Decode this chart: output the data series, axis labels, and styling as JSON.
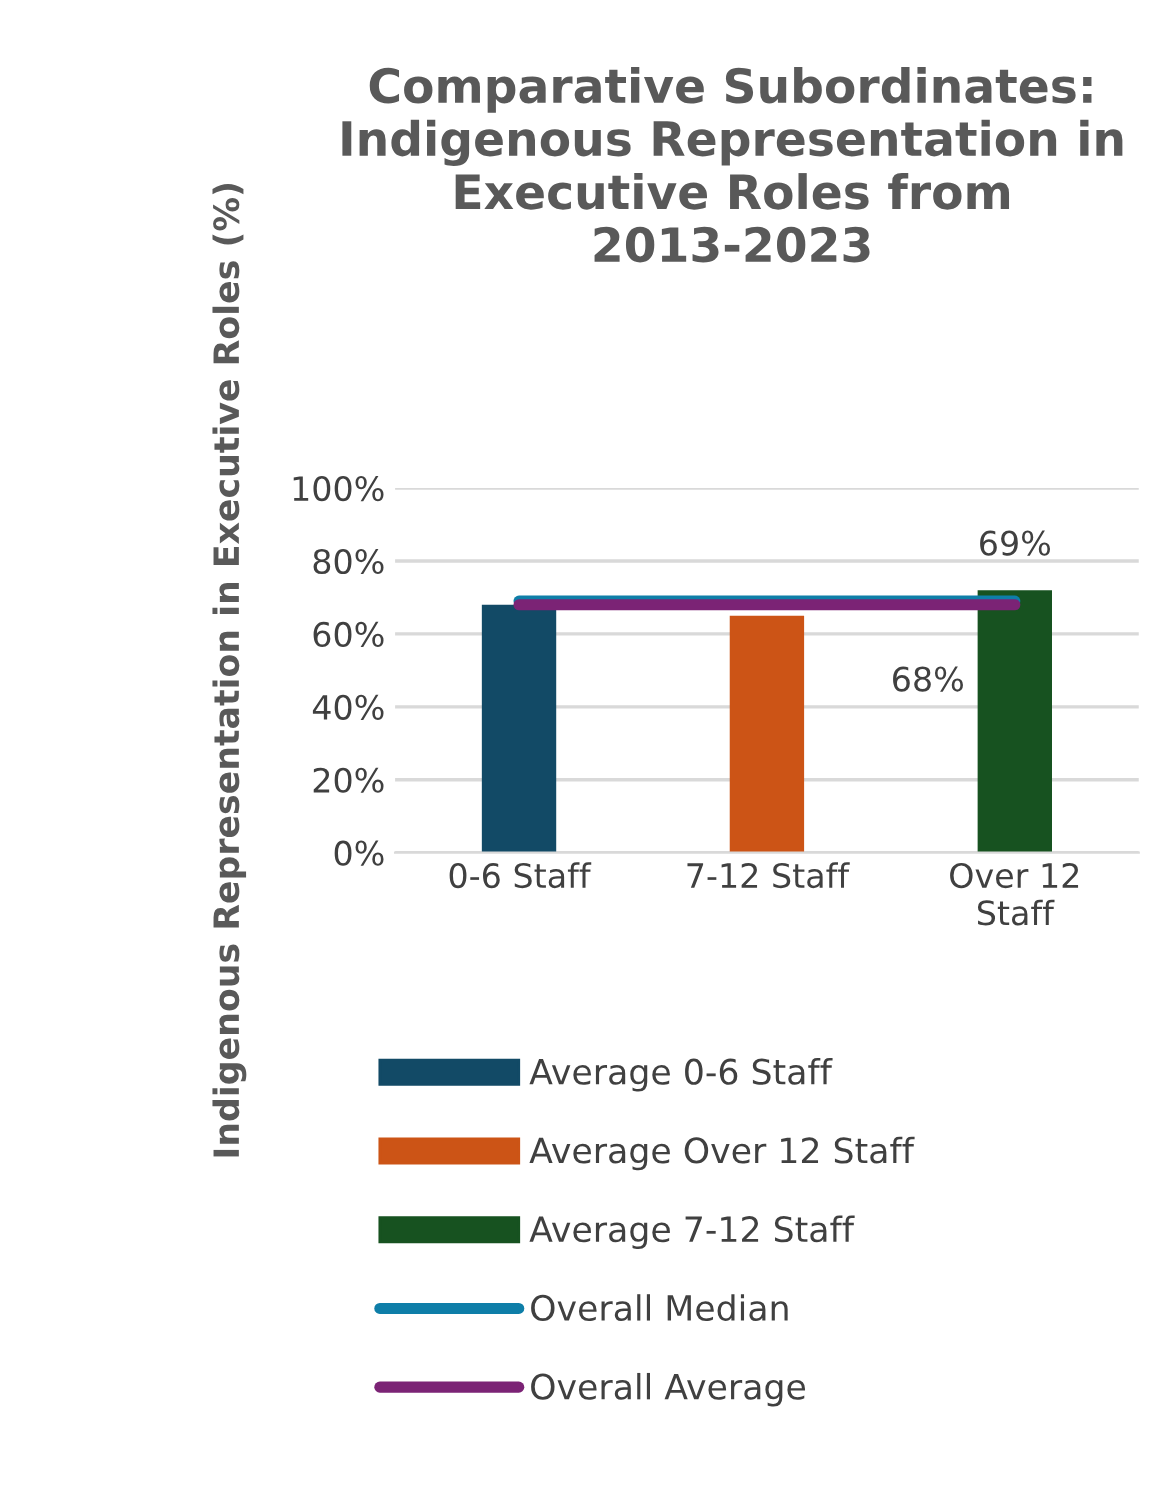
{
  "chart_data": {
    "type": "bar",
    "title": "Comparative Subordinates: Indigenous Representation in Executive Roles from 2013-2023",
    "ylabel": "Indigenous Representation in Executive Roles (%)",
    "categories": [
      "0-6 Staff",
      "7-12 Staff",
      "Over 12\nStaff"
    ],
    "series": [
      {
        "name": "Average 0-6 Staff",
        "color": "#124a66",
        "values": [
          68,
          null,
          null
        ]
      },
      {
        "name": "Average Over 12 Staff",
        "color": "#cc5416",
        "values": [
          null,
          65,
          null
        ]
      },
      {
        "name": "Average 7-12 Staff",
        "color": "#175220",
        "values": [
          null,
          null,
          72
        ]
      },
      {
        "name": "Overall Median",
        "type": "line",
        "color": "#0e7ea8",
        "values": [
          69,
          69,
          69
        ],
        "value_labels": [
          null,
          null,
          "69%"
        ]
      },
      {
        "name": "Overall Average",
        "type": "line",
        "color": "#7b2375",
        "values": [
          68,
          68,
          68
        ],
        "value_labels": [
          null,
          null,
          "68%"
        ]
      }
    ],
    "ylim": [
      0,
      100
    ],
    "yticks": [
      {
        "value": 0,
        "label": "0%"
      },
      {
        "value": 20,
        "label": "20%"
      },
      {
        "value": 40,
        "label": "40%"
      },
      {
        "value": 60,
        "label": "60%"
      },
      {
        "value": 80,
        "label": "80%"
      },
      {
        "value": 100,
        "label": "100%"
      }
    ],
    "grid": "y",
    "legend": "bottom"
  }
}
